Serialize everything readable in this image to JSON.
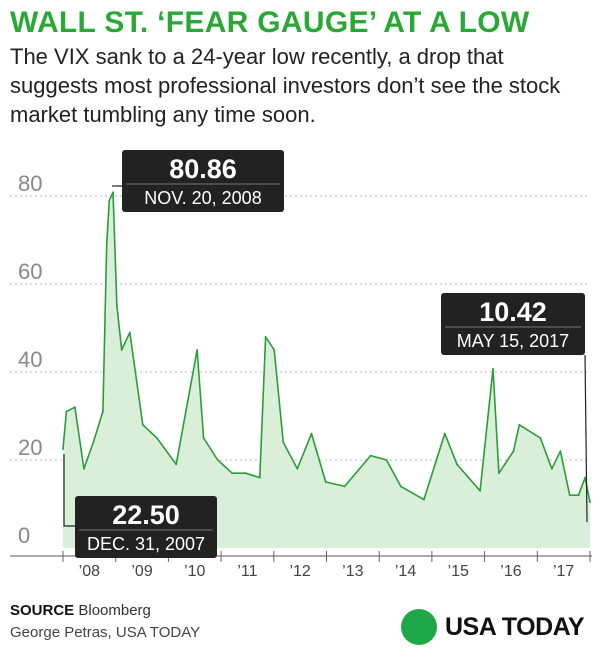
{
  "header": {
    "title": "WALL ST. ‘FEAR GAUGE’ AT A LOW",
    "subtitle": "The VIX sank to a 24-year low recently, a drop that suggests most professional investors don’t see the stock market tumbling any time soon."
  },
  "footer": {
    "source_label": "SOURCE",
    "source_value": "Bloomberg",
    "credit": "George Petras, USA TODAY",
    "brand": "USA TODAY"
  },
  "colors": {
    "title": "#2aa836",
    "line": "#2a9d39",
    "area": "#d9efd9",
    "callout_bg": "#222222",
    "brand_dot": "#1fa84a"
  },
  "chart_data": {
    "type": "area",
    "title": "",
    "xlabel": "",
    "ylabel": "",
    "ylim": [
      0,
      80
    ],
    "yticks": [
      "0",
      "20",
      "40",
      "60",
      "80"
    ],
    "xticks": [
      "’08",
      "’09",
      "’10",
      "’11",
      "’12",
      "’13",
      "’14",
      "’15",
      "’16",
      "’17"
    ],
    "xrange": [
      "2007-12-31",
      "2017-05-15"
    ],
    "grid": true,
    "series": [
      {
        "x": [
          "2007-12-31",
          "2008-01-22",
          "2008-03-17",
          "2008-05-15",
          "2008-07-15",
          "2008-09-15",
          "2008-10-10",
          "2008-10-27",
          "2008-11-20",
          "2008-12-15",
          "2009-01-15",
          "2009-03-09",
          "2009-06-01",
          "2009-09-01",
          "2010-01-04",
          "2010-05-20",
          "2010-07-01",
          "2010-10-01",
          "2011-01-03",
          "2011-04-01",
          "2011-07-01",
          "2011-08-08",
          "2011-10-03",
          "2011-12-01",
          "2012-03-01",
          "2012-06-01",
          "2012-09-01",
          "2013-01-02",
          "2013-06-20",
          "2013-10-01",
          "2014-01-02",
          "2014-06-01",
          "2014-10-15",
          "2015-01-02",
          "2015-06-01",
          "2015-08-24",
          "2015-10-01",
          "2016-01-04",
          "2016-02-11",
          "2016-06-27",
          "2016-09-09",
          "2016-11-04",
          "2017-01-03",
          "2017-03-01",
          "2017-04-13",
          "2017-05-15"
        ],
        "y": [
          22.5,
          31,
          32,
          18,
          24,
          31,
          69,
          79,
          80.86,
          55,
          45,
          49,
          28,
          25,
          19,
          45,
          25,
          20,
          17,
          17,
          16,
          48,
          45,
          24,
          18,
          26,
          15,
          14,
          21,
          20,
          14,
          11,
          26,
          19,
          13,
          40.7,
          17,
          22,
          28,
          25,
          18,
          22,
          12,
          12,
          16,
          10.42
        ]
      }
    ],
    "annotations": [
      {
        "value": "80.86",
        "date": "NOV. 20, 2008"
      },
      {
        "value": "10.42",
        "date": "MAY 15, 2017"
      },
      {
        "value": "22.50",
        "date": "DEC. 31, 2007"
      }
    ]
  }
}
